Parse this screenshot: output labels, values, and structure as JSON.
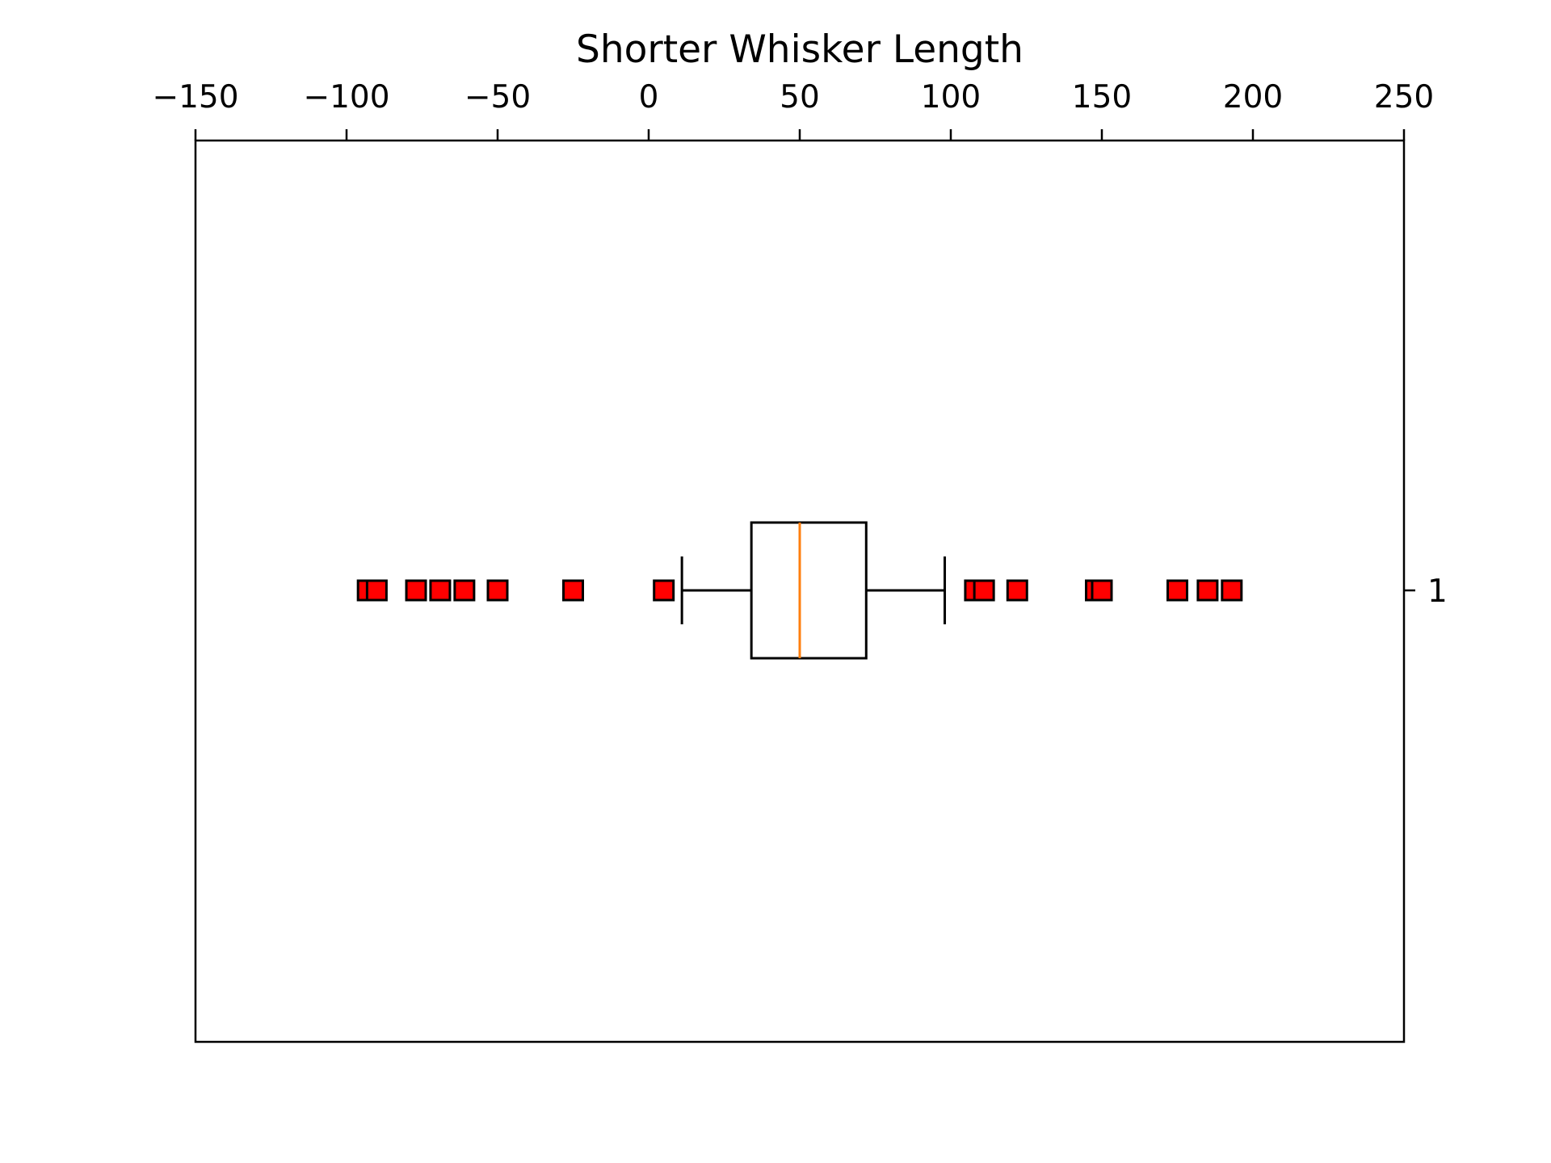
{
  "chart_data": {
    "type": "box",
    "orientation": "horizontal",
    "title": "Shorter Whisker Length",
    "xlabel": "",
    "ylabel": "",
    "xlim": [
      -150,
      250
    ],
    "x_ticks": [
      -150,
      -100,
      -50,
      0,
      50,
      100,
      150,
      200,
      250
    ],
    "x_tick_labels": [
      "−150",
      "−100",
      "−50",
      "0",
      "50",
      "100",
      "150",
      "200",
      "250"
    ],
    "x_axis_position": "top",
    "y_tick_labels": [
      "1"
    ],
    "y_axis_position": "right",
    "grid": false,
    "boxes": [
      {
        "category": "1",
        "whisker_low": 11,
        "q1": 34,
        "median": 50,
        "q3": 72,
        "whisker_high": 98,
        "outliers": [
          -93,
          -90,
          -77,
          -69,
          -61,
          -50,
          -25,
          5,
          108,
          111,
          122,
          148,
          150,
          175,
          185,
          193
        ]
      }
    ],
    "colors": {
      "box": "#000000",
      "median": "#ff7f0e",
      "outlier_fill": "#ff0000",
      "outlier_edge": "#000000"
    }
  }
}
